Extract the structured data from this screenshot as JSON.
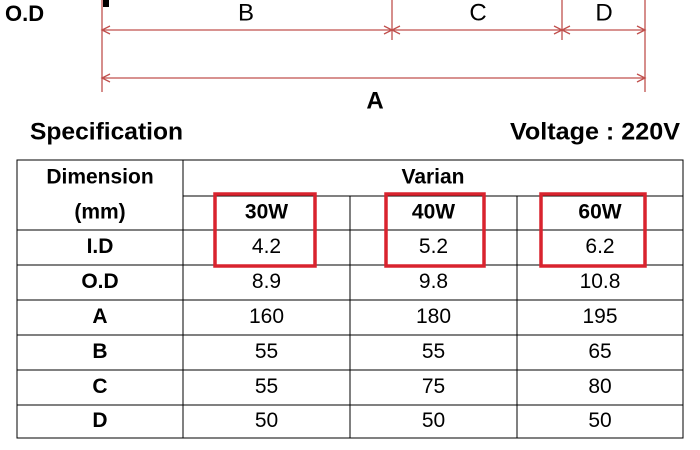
{
  "diagram": {
    "od_label": "O.D",
    "labels": {
      "b": "B",
      "c": "C",
      "d": "D",
      "a": "A"
    }
  },
  "header": {
    "title": "Specification",
    "voltage": "Voltage : 220V"
  },
  "table": {
    "header": [
      "Dimension",
      "Varian"
    ],
    "subheader": [
      "(mm)",
      "30W",
      "40W",
      "60W"
    ],
    "rows": [
      [
        "I.D",
        4.2,
        5.2,
        6.2
      ],
      [
        "O.D",
        8.9,
        9.8,
        10.8
      ],
      [
        "A",
        160,
        180,
        195
      ],
      [
        "B",
        55,
        55,
        65
      ],
      [
        "C",
        55,
        75,
        80
      ],
      [
        "D",
        50,
        50,
        50
      ]
    ]
  }
}
